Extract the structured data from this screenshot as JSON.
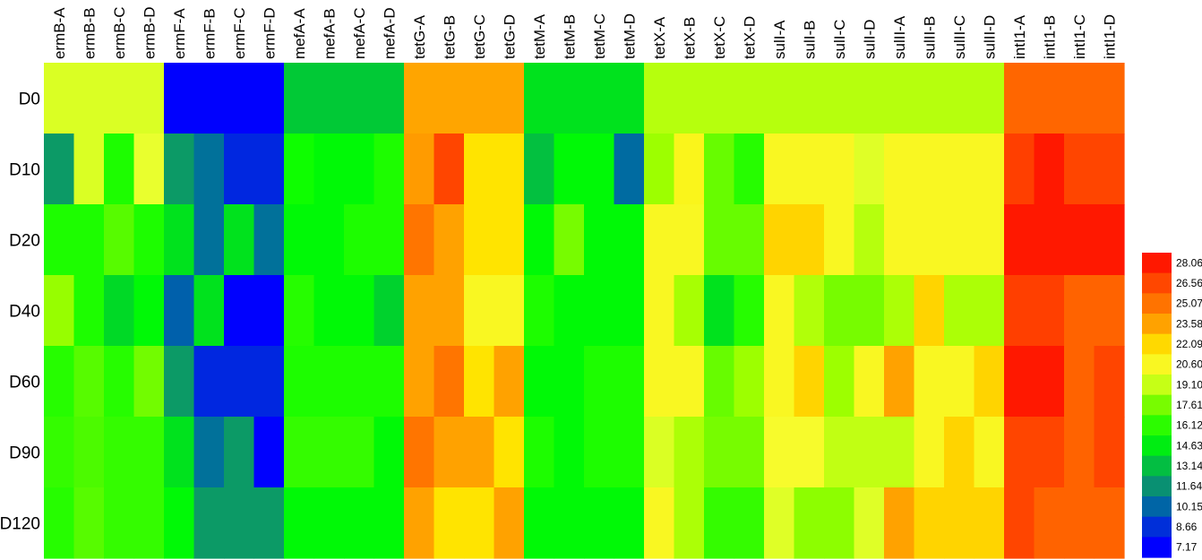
{
  "chart_data": {
    "type": "heatmap",
    "columns": [
      "ermB-A",
      "ermB-B",
      "ermB-C",
      "ermB-D",
      "ermF-A",
      "ermF-B",
      "ermF-C",
      "ermF-D",
      "mefA-A",
      "mefA-B",
      "mefA-C",
      "mefA-D",
      "tetG-A",
      "tetG-B",
      "tetG-C",
      "tetG-D",
      "tetM-A",
      "tetM-B",
      "tetM-C",
      "tetM-D",
      "tetX-A",
      "tetX-B",
      "tetX-C",
      "tetX-D",
      "sulI-A",
      "sulI-B",
      "sulI-C",
      "sulI-D",
      "sulII-A",
      "sulII-B",
      "sulII-C",
      "sulII-D",
      "intI1-A",
      "intI1-B",
      "intI1-C",
      "intI1-D"
    ],
    "rows": [
      "D0",
      "D10",
      "D20",
      "D40",
      "D60",
      "D90",
      "D120"
    ],
    "values": [
      [
        19.5,
        19.5,
        19.5,
        19.5,
        7.2,
        7.2,
        7.2,
        7.2,
        13.5,
        13.5,
        13.5,
        13.5,
        23.5,
        23.5,
        23.5,
        23.5,
        14.3,
        14.3,
        14.3,
        14.3,
        18.8,
        18.8,
        18.8,
        18.8,
        18.8,
        18.8,
        18.8,
        18.8,
        18.8,
        18.8,
        18.8,
        18.8,
        25.5,
        25.5,
        25.5,
        25.5
      ],
      [
        12.0,
        19.5,
        15.8,
        19.8,
        12.0,
        10.5,
        8.4,
        8.4,
        15.5,
        15.0,
        15.0,
        15.8,
        23.8,
        26.6,
        21.8,
        21.8,
        13.2,
        15.0,
        15.0,
        10.3,
        18.3,
        20.8,
        17.3,
        16.0,
        20.6,
        20.6,
        20.6,
        19.6,
        20.6,
        20.6,
        20.6,
        20.6,
        26.8,
        28.1,
        26.6,
        26.6
      ],
      [
        15.8,
        15.8,
        17.0,
        15.8,
        14.3,
        10.5,
        14.3,
        10.5,
        15.0,
        15.0,
        15.8,
        15.8,
        25.0,
        23.6,
        21.8,
        21.8,
        15.0,
        17.6,
        15.0,
        15.0,
        20.6,
        20.6,
        17.3,
        17.3,
        22.2,
        22.2,
        20.6,
        18.8,
        20.6,
        20.6,
        20.6,
        20.6,
        28.1,
        28.1,
        28.1,
        28.1
      ],
      [
        18.2,
        15.8,
        14.0,
        15.0,
        10.0,
        14.3,
        7.2,
        7.2,
        16.0,
        15.0,
        15.0,
        13.8,
        23.6,
        23.6,
        20.6,
        20.6,
        15.8,
        15.0,
        15.0,
        15.0,
        20.6,
        18.5,
        14.3,
        16.0,
        20.6,
        18.7,
        17.6,
        17.6,
        18.6,
        22.2,
        18.6,
        18.6,
        26.8,
        26.8,
        25.6,
        25.6
      ],
      [
        16.0,
        17.0,
        16.0,
        17.5,
        12.0,
        8.4,
        8.4,
        8.4,
        15.8,
        15.8,
        15.8,
        15.8,
        23.6,
        25.0,
        21.8,
        23.6,
        15.0,
        15.0,
        15.8,
        15.8,
        20.6,
        20.6,
        17.3,
        18.3,
        20.6,
        22.2,
        18.3,
        20.6,
        23.6,
        20.6,
        20.6,
        22.2,
        28.1,
        28.1,
        25.6,
        26.6
      ],
      [
        16.3,
        16.8,
        16.3,
        16.3,
        14.3,
        10.5,
        12.0,
        7.2,
        16.3,
        16.3,
        16.3,
        15.0,
        25.0,
        23.6,
        23.6,
        21.8,
        15.8,
        15.0,
        15.8,
        15.8,
        19.5,
        18.6,
        17.6,
        17.6,
        20.3,
        20.3,
        19.0,
        19.0,
        19.0,
        20.6,
        22.2,
        20.6,
        26.6,
        26.6,
        25.6,
        26.6
      ],
      [
        16.0,
        17.0,
        16.3,
        16.3,
        15.0,
        12.0,
        12.0,
        12.0,
        15.0,
        15.0,
        15.0,
        15.0,
        23.6,
        21.8,
        21.8,
        23.6,
        15.0,
        15.0,
        15.0,
        15.0,
        20.6,
        18.6,
        16.3,
        16.3,
        19.6,
        18.0,
        18.0,
        19.6,
        23.6,
        22.2,
        22.2,
        22.2,
        26.6,
        25.6,
        25.6,
        25.6
      ]
    ],
    "legend_ticks": [
      "28.06",
      "26.56",
      "25.07",
      "23.58",
      "22.09",
      "20.60",
      "19.10",
      "17.61",
      "16.12",
      "14.63",
      "13.14",
      "11.64",
      "10.15",
      "8.66",
      "7.17"
    ],
    "color_scale": [
      "#0000ff",
      "#0033d6",
      "#006e9e",
      "#0c9a66",
      "#00cc33",
      "#00ff00",
      "#4dfa00",
      "#a3ff00",
      "#f5ff35",
      "#ffea00",
      "#ffad00",
      "#ff7a00",
      "#ff4a00",
      "#ff1800"
    ],
    "vmin": 7.17,
    "vmax": 28.06
  }
}
